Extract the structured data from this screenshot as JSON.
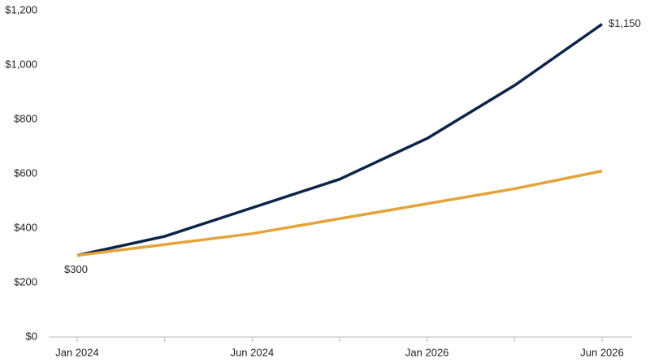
{
  "chart_data": {
    "type": "line",
    "categories": [
      "Jan 2024",
      null,
      "Jun 2024",
      null,
      "Jan 2026",
      null,
      "Jun 2026"
    ],
    "series": [
      {
        "color": "#0d2449",
        "values": [
          300,
          370,
          475,
          580,
          730,
          925,
          1150
        ],
        "value_labels": [
          "$300",
          null,
          null,
          null,
          null,
          null,
          "$1,150"
        ]
      },
      {
        "color": "#e3a43a",
        "values": [
          300,
          340,
          380,
          435,
          490,
          545,
          610
        ]
      }
    ],
    "ylim": [
      0,
      1200
    ],
    "yticks": [
      {
        "value": 0,
        "label": "$0"
      },
      {
        "value": 200,
        "label": "$200"
      },
      {
        "value": 400,
        "label": "$400"
      },
      {
        "value": 600,
        "label": "$600"
      },
      {
        "value": 800,
        "label": "$800"
      },
      {
        "value": 1000,
        "label": "$1,000"
      },
      {
        "value": 1200,
        "label": "$1,200"
      }
    ],
    "grid": false
  }
}
